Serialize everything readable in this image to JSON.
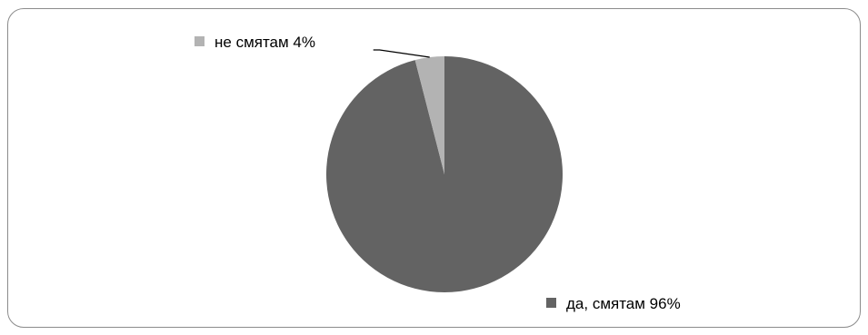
{
  "chart_data": {
    "type": "pie",
    "title": "",
    "slices": [
      {
        "label": "да, смятам",
        "value": 96,
        "display": "да, смятам 96%",
        "color": "#636363"
      },
      {
        "label": "не смятам",
        "value": 4,
        "display": "не смятам 4%",
        "color": "#b3b3b3"
      }
    ],
    "start_angle_deg": 0,
    "direction": "clockwise",
    "legend": "data-labels-with-markers"
  }
}
